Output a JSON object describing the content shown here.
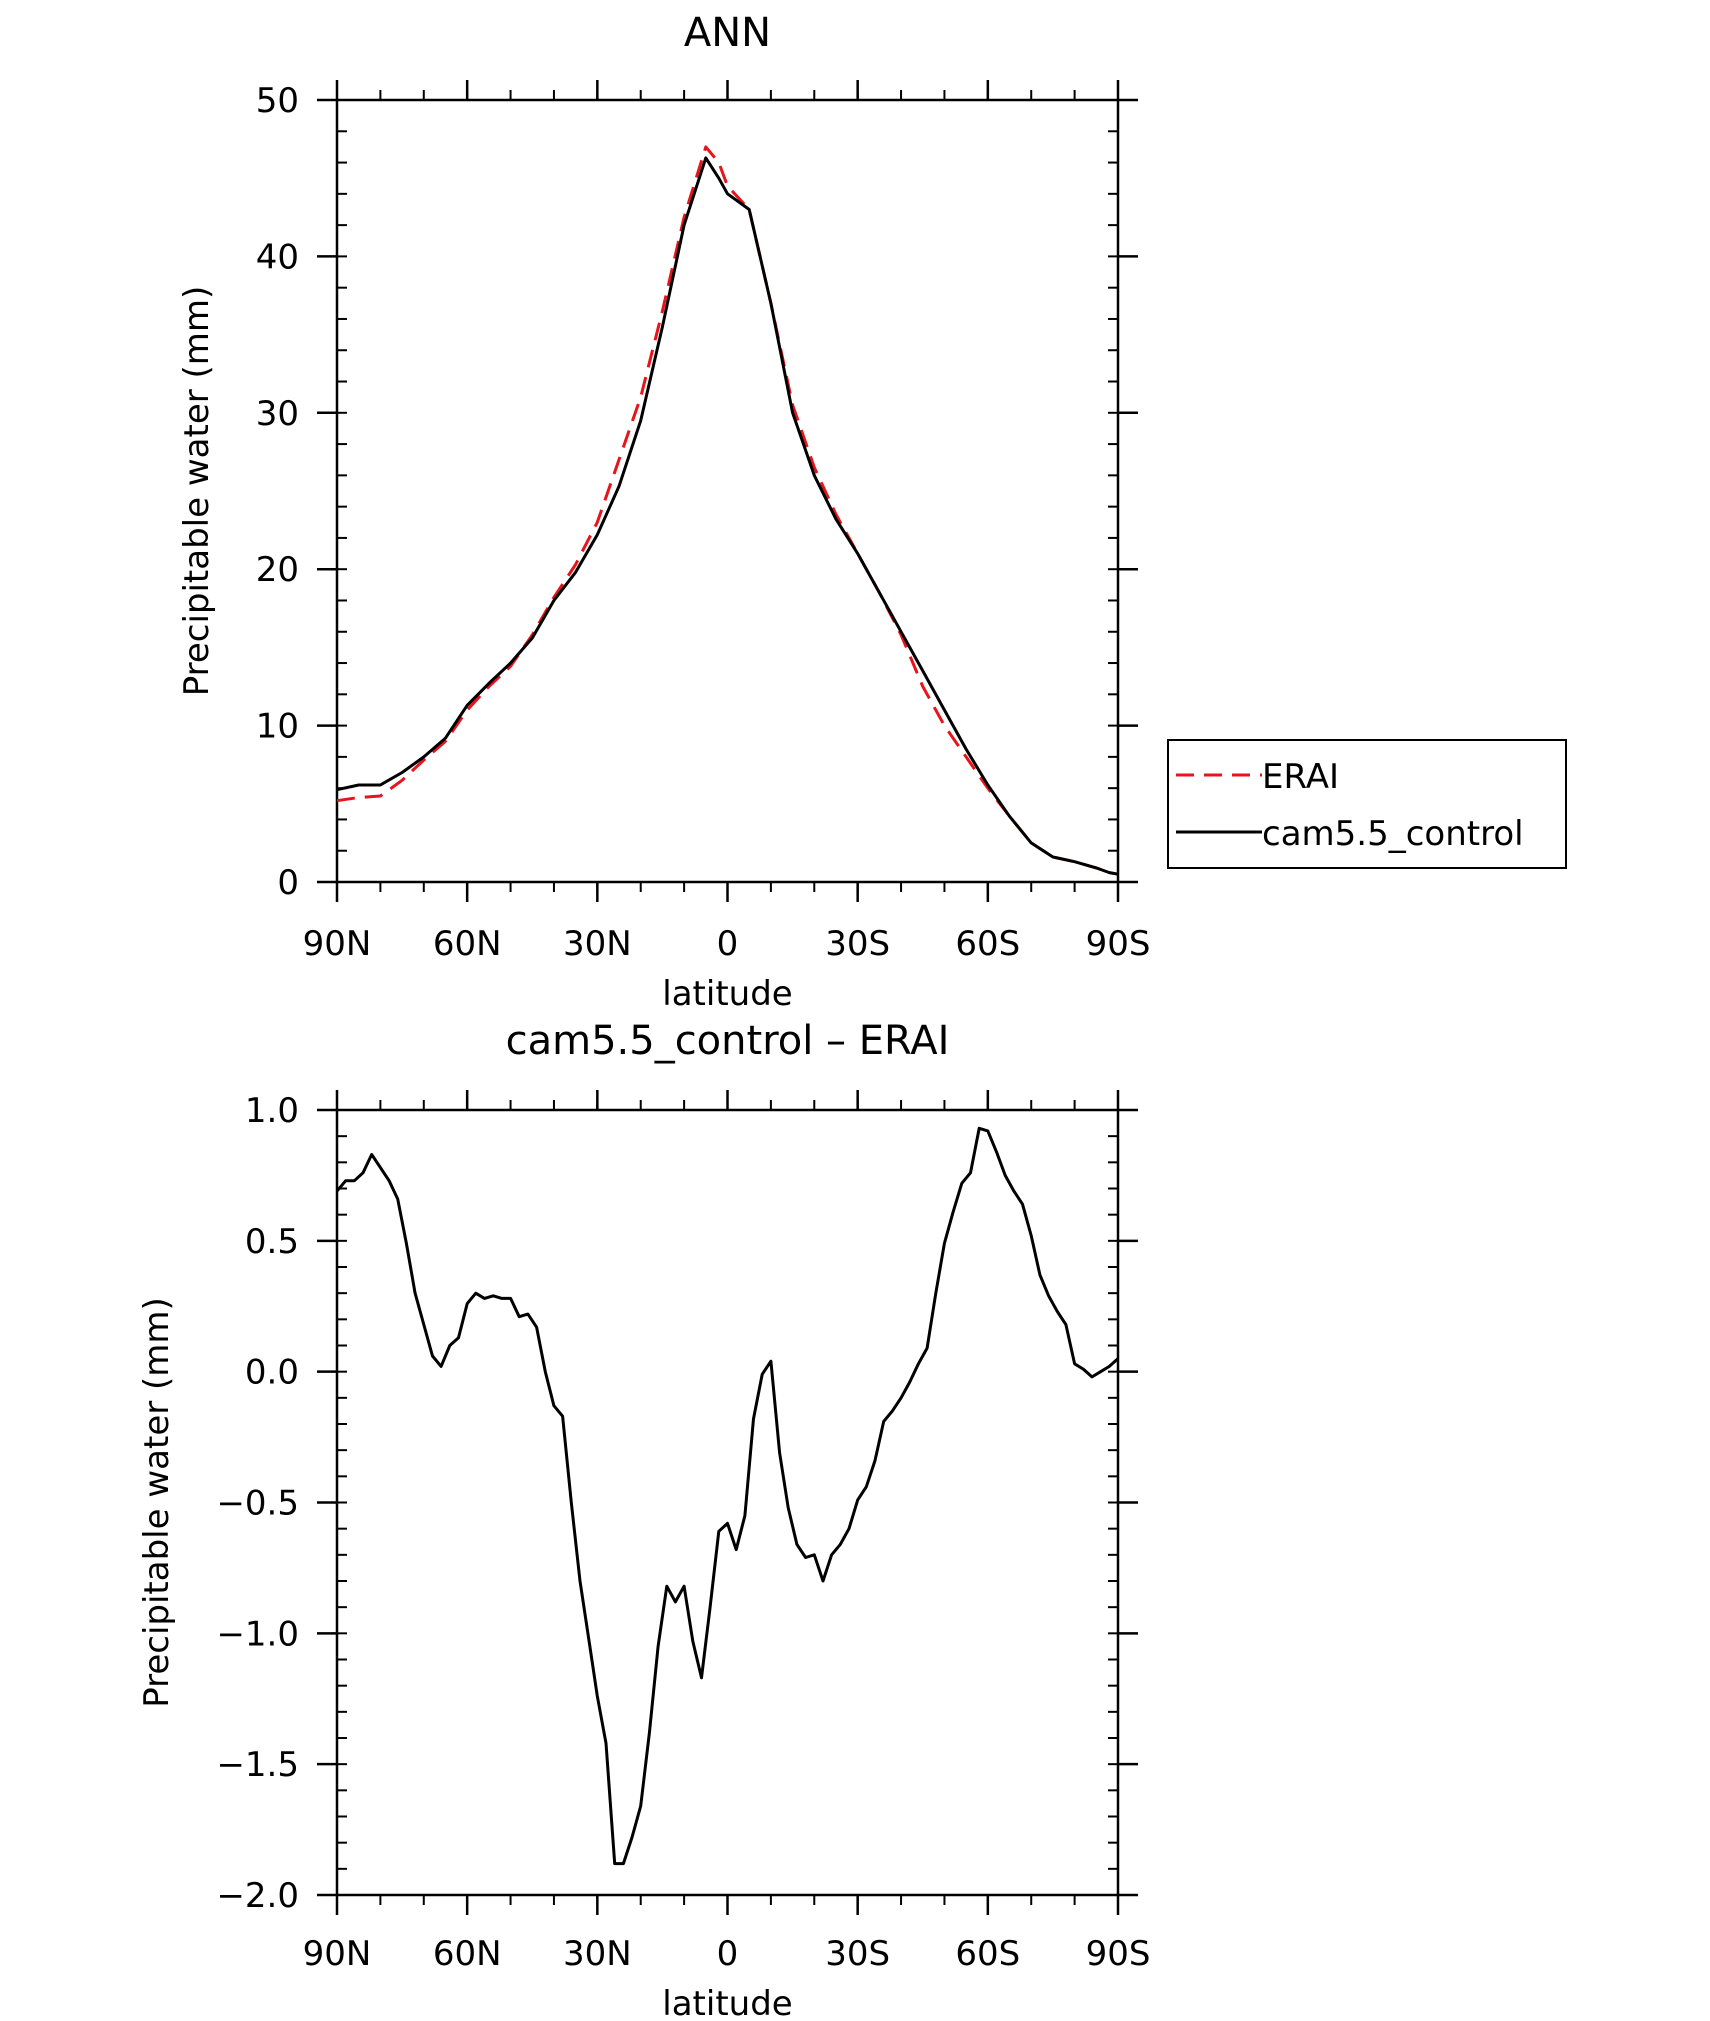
{
  "chart_data": [
    {
      "type": "line",
      "title": "ANN",
      "xlabel": "latitude",
      "ylabel": "Precipitable water (mm)",
      "xlim": [
        90,
        -90
      ],
      "ylim": [
        0,
        50
      ],
      "xticks": [
        90,
        60,
        30,
        0,
        -30,
        -60,
        -90
      ],
      "xtick_labels": [
        "90N",
        "60N",
        "30N",
        "0",
        "30S",
        "60S",
        "90S"
      ],
      "yticks": [
        0,
        10,
        20,
        30,
        40,
        50
      ],
      "ytick_labels": [
        "0",
        "10",
        "20",
        "30",
        "40",
        "50"
      ],
      "legend_position": "right",
      "series": [
        {
          "name": "ERAI",
          "color": "#e8141b",
          "dash": "dashed",
          "x": [
            90,
            85,
            80,
            75,
            70,
            65,
            60,
            55,
            50,
            45,
            40,
            35,
            30,
            25,
            20,
            15,
            10,
            5,
            2,
            0,
            -5,
            -10,
            -15,
            -20,
            -25,
            -30,
            -35,
            -40,
            -45,
            -50,
            -55,
            -60,
            -65,
            -70,
            -75,
            -80,
            -85,
            -88,
            -90
          ],
          "y": [
            5.2,
            5.4,
            5.5,
            6.5,
            7.8,
            9.0,
            11.0,
            12.5,
            13.8,
            15.8,
            18.2,
            20.3,
            23.0,
            27.0,
            31.0,
            36.5,
            42.5,
            47.0,
            46.0,
            44.5,
            43.0,
            37.0,
            30.5,
            26.5,
            23.5,
            21.0,
            18.5,
            15.8,
            12.5,
            10.0,
            8.0,
            6.0,
            4.2,
            2.5,
            1.6,
            1.3,
            0.9,
            0.6,
            0.5
          ]
        },
        {
          "name": "cam5.5_control",
          "color": "#000000",
          "dash": "solid",
          "x": [
            90,
            85,
            80,
            75,
            70,
            65,
            60,
            55,
            50,
            45,
            40,
            35,
            30,
            25,
            20,
            15,
            10,
            5,
            2,
            0,
            -5,
            -10,
            -15,
            -20,
            -25,
            -30,
            -35,
            -40,
            -45,
            -50,
            -55,
            -60,
            -65,
            -70,
            -75,
            -80,
            -85,
            -88,
            -90
          ],
          "y": [
            5.9,
            6.2,
            6.2,
            7.0,
            8.0,
            9.2,
            11.3,
            12.7,
            14.0,
            15.6,
            18.0,
            19.8,
            22.2,
            25.3,
            29.5,
            35.5,
            42.0,
            46.3,
            45.0,
            44.0,
            43.0,
            37.0,
            30.0,
            26.0,
            23.2,
            21.0,
            18.5,
            16.0,
            13.5,
            11.0,
            8.5,
            6.2,
            4.2,
            2.5,
            1.6,
            1.3,
            0.9,
            0.6,
            0.5
          ]
        }
      ]
    },
    {
      "type": "line",
      "title": "cam5.5_control – ERAI",
      "xlabel": "latitude",
      "ylabel": "Precipitable water (mm)",
      "xlim": [
        90,
        -90
      ],
      "ylim": [
        -2.0,
        1.0
      ],
      "xticks": [
        90,
        60,
        30,
        0,
        -30,
        -60,
        -90
      ],
      "xtick_labels": [
        "90N",
        "60N",
        "30N",
        "0",
        "30S",
        "60S",
        "90S"
      ],
      "yticks": [
        1.0,
        0.5,
        0.0,
        -0.5,
        -1.0,
        -1.5,
        -2.0
      ],
      "ytick_labels": [
        "1.0",
        "0.5",
        "0.0",
        "−0.5",
        "−1.0",
        "−1.5",
        "−2.0"
      ],
      "series": [
        {
          "color": "#000000",
          "dash": "solid",
          "x": [
            90,
            88,
            86,
            84,
            82,
            80,
            78,
            76,
            74,
            72,
            70,
            68,
            66,
            64,
            62,
            60,
            58,
            56,
            54,
            52,
            50,
            48,
            46,
            44,
            42,
            40,
            38,
            36,
            34,
            32,
            30,
            28,
            26,
            24,
            22,
            20,
            18,
            16,
            14,
            12,
            10,
            8,
            6,
            4,
            2,
            0,
            -2,
            -4,
            -6,
            -8,
            -10,
            -12,
            -14,
            -16,
            -18,
            -20,
            -22,
            -24,
            -26,
            -28,
            -30,
            -32,
            -34,
            -36,
            -38,
            -40,
            -42,
            -44,
            -46,
            -48,
            -50,
            -52,
            -54,
            -56,
            -58,
            -60,
            -62,
            -64,
            -66,
            -68,
            -70,
            -72,
            -74,
            -76,
            -78,
            -80,
            -82,
            -84,
            -86,
            -88,
            -90
          ],
          "y": [
            0.69,
            0.73,
            0.73,
            0.76,
            0.83,
            0.78,
            0.73,
            0.66,
            0.49,
            0.3,
            0.18,
            0.06,
            0.02,
            0.1,
            0.13,
            0.26,
            0.3,
            0.28,
            0.29,
            0.28,
            0.28,
            0.21,
            0.22,
            0.17,
            0.0,
            -0.13,
            -0.17,
            -0.5,
            -0.8,
            -1.02,
            -1.24,
            -1.42,
            -1.88,
            -1.88,
            -1.78,
            -1.66,
            -1.38,
            -1.05,
            -0.82,
            -0.88,
            -0.82,
            -1.03,
            -1.17,
            -0.9,
            -0.61,
            -0.58,
            -0.68,
            -0.55,
            -0.18,
            -0.01,
            0.04,
            -0.31,
            -0.52,
            -0.66,
            -0.71,
            -0.7,
            -0.8,
            -0.7,
            -0.66,
            -0.6,
            -0.49,
            -0.44,
            -0.34,
            -0.19,
            -0.15,
            -0.1,
            -0.04,
            0.03,
            0.09,
            0.3,
            0.49,
            0.61,
            0.72,
            0.76,
            0.93,
            0.92,
            0.84,
            0.75,
            0.69,
            0.64,
            0.52,
            0.37,
            0.29,
            0.23,
            0.18,
            0.03,
            0.01,
            -0.02,
            0.0,
            0.02,
            0.05
          ]
        }
      ]
    }
  ]
}
